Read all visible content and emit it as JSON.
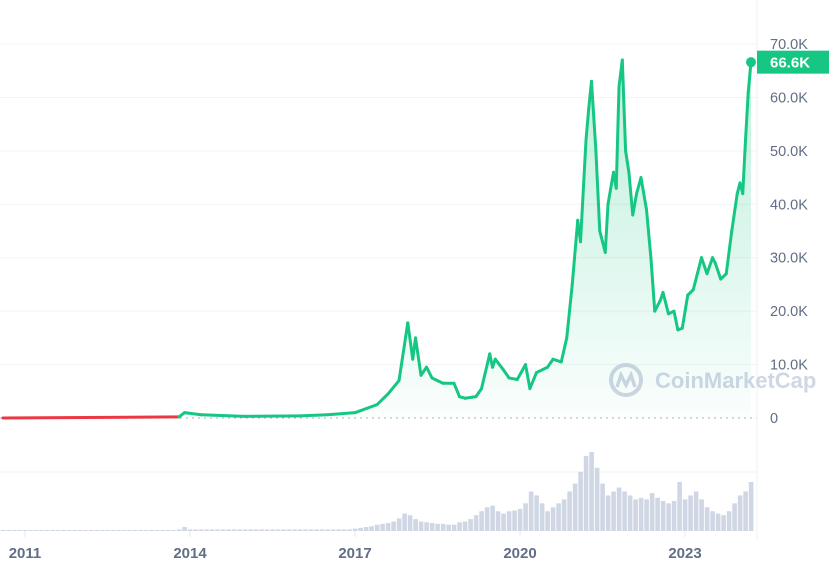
{
  "chart_data": {
    "type": "area",
    "title": "",
    "xlabel": "",
    "ylabel": "",
    "xlim": [
      2010.6,
      2024.2
    ],
    "ylim": [
      0,
      70000
    ],
    "grid": true,
    "x_ticks": [
      "2011",
      "2014",
      "2017",
      "2020",
      "2023"
    ],
    "y_ticks": [
      "0",
      "10.0K",
      "20.0K",
      "30.0K",
      "40.0K",
      "50.0K",
      "60.0K",
      "70.0K"
    ],
    "current_price_label": "66.6K",
    "watermark": "CoinMarketCap",
    "colors": {
      "up": "#16c784",
      "down": "#ea3943",
      "volume": "#cfd6e4",
      "axis_text": "#616e85"
    },
    "price": {
      "x": [
        2010.6,
        2013.8,
        2013.9,
        2014.2,
        2015.0,
        2016.0,
        2016.5,
        2017.0,
        2017.4,
        2017.6,
        2017.8,
        2017.96,
        2018.05,
        2018.1,
        2018.2,
        2018.3,
        2018.4,
        2018.5,
        2018.6,
        2018.8,
        2018.9,
        2019.0,
        2019.2,
        2019.3,
        2019.45,
        2019.5,
        2019.55,
        2019.7,
        2019.8,
        2019.95,
        2020.1,
        2020.18,
        2020.3,
        2020.5,
        2020.6,
        2020.75,
        2020.85,
        2020.95,
        2021.05,
        2021.1,
        2021.2,
        2021.25,
        2021.3,
        2021.38,
        2021.45,
        2021.5,
        2021.55,
        2021.6,
        2021.7,
        2021.75,
        2021.8,
        2021.86,
        2021.92,
        2021.98,
        2022.05,
        2022.12,
        2022.2,
        2022.3,
        2022.38,
        2022.45,
        2022.55,
        2022.6,
        2022.7,
        2022.8,
        2022.87,
        2022.95,
        2023.05,
        2023.15,
        2023.25,
        2023.3,
        2023.4,
        2023.5,
        2023.55,
        2023.65,
        2023.75,
        2023.85,
        2023.95,
        2024.0,
        2024.05,
        2024.1,
        2024.15,
        2024.2
      ],
      "y": [
        0,
        200,
        1000,
        600,
        300,
        400,
        600,
        1000,
        2500,
        4500,
        7000,
        17800,
        11000,
        15000,
        8000,
        9500,
        7500,
        7000,
        6500,
        6500,
        4000,
        3700,
        4000,
        5500,
        12000,
        9500,
        11000,
        9000,
        7500,
        7200,
        10000,
        5500,
        8500,
        9500,
        11000,
        10500,
        15000,
        25000,
        37000,
        33000,
        52000,
        58000,
        63000,
        50000,
        35000,
        33000,
        31000,
        40000,
        46000,
        43000,
        62000,
        67000,
        50000,
        46000,
        38000,
        42000,
        45000,
        39000,
        30000,
        20000,
        22000,
        23500,
        19500,
        20000,
        16500,
        16800,
        23000,
        24000,
        28000,
        30000,
        27000,
        30000,
        29000,
        26000,
        27000,
        35000,
        42000,
        44000,
        42000,
        52000,
        61000,
        66600
      ]
    },
    "volume_relative": {
      "x_start": 2010.6,
      "x_step": 0.1,
      "values": [
        1,
        1,
        1,
        1,
        1,
        1,
        1,
        1,
        1,
        1,
        1,
        1,
        1,
        1,
        1,
        1,
        1,
        1,
        1,
        1,
        1,
        1,
        1,
        1,
        1,
        1,
        1,
        1,
        1,
        1,
        1,
        1,
        2,
        5,
        2,
        2,
        2,
        2,
        2,
        2,
        2,
        2,
        2,
        2,
        2,
        2,
        2,
        2,
        2,
        2,
        2,
        2,
        2,
        2,
        2,
        2,
        2,
        2,
        2,
        2,
        2,
        2,
        2,
        2,
        3,
        4,
        5,
        6,
        8,
        9,
        10,
        12,
        16,
        22,
        20,
        15,
        12,
        11,
        10,
        9,
        9,
        8,
        8,
        11,
        12,
        15,
        20,
        25,
        30,
        32,
        25,
        22,
        25,
        26,
        28,
        35,
        50,
        45,
        35,
        25,
        30,
        35,
        40,
        50,
        60,
        75,
        95,
        100,
        80,
        60,
        45,
        50,
        55,
        50,
        45,
        40,
        42,
        40,
        48,
        42,
        38,
        35,
        38,
        62,
        40,
        45,
        50,
        40,
        30,
        25,
        22,
        20,
        25,
        35,
        45,
        50,
        62
      ]
    }
  }
}
